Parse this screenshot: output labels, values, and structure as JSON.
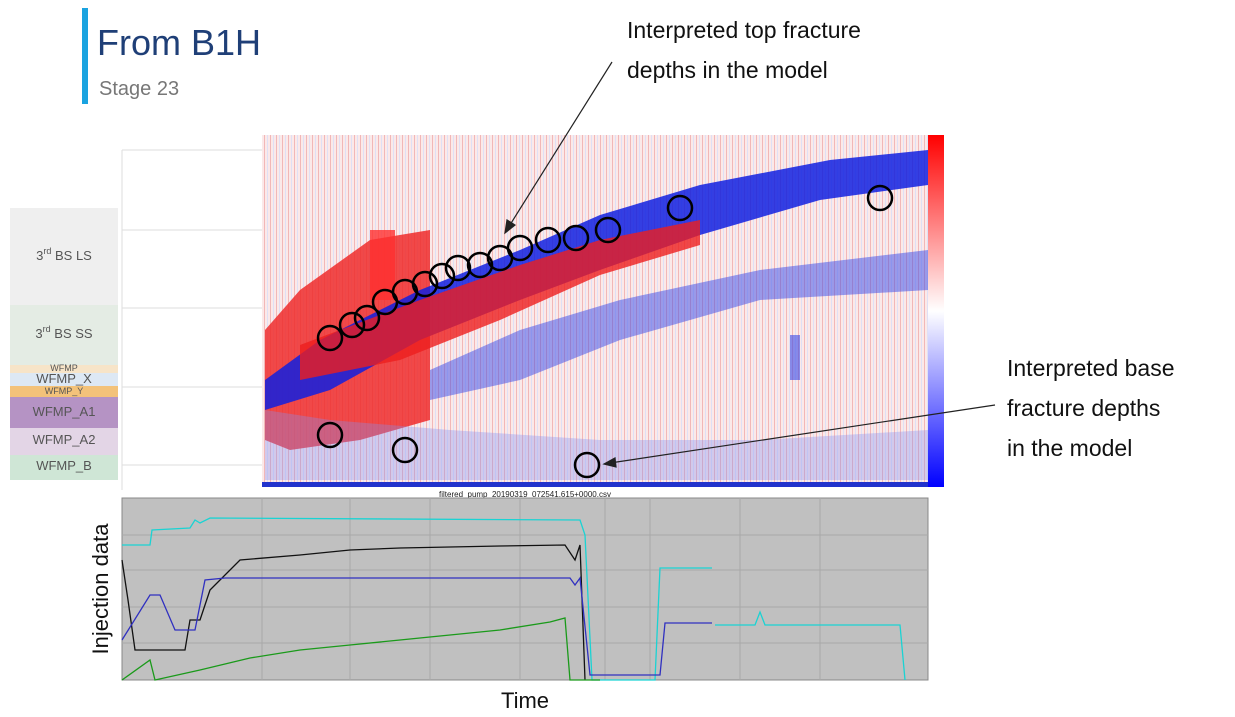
{
  "header": {
    "title": "From B1H",
    "subtitle": "Stage 23"
  },
  "annotations": {
    "top": [
      "Interpreted top fracture",
      "depths in the model"
    ],
    "base": [
      "Interpreted base",
      "fracture depths",
      "in the model"
    ]
  },
  "layers": [
    {
      "base": "3",
      "sup": "rd",
      "rest": " BS LS"
    },
    {
      "base": "3",
      "sup": "rd",
      "rest": " BS SS"
    },
    {
      "base": "WFMP"
    },
    {
      "base": "WFMP_X"
    },
    {
      "base": "WFMP_Y"
    },
    {
      "base": "WFMP_A1"
    },
    {
      "base": "WFMP_A2"
    },
    {
      "base": "WFMP_B"
    }
  ],
  "waterfall": {
    "file": "filtered_pump_20190319_072541.615+0000.csv"
  },
  "injection": {
    "ylabel": "Injection data",
    "xlabel": "Time"
  }
}
